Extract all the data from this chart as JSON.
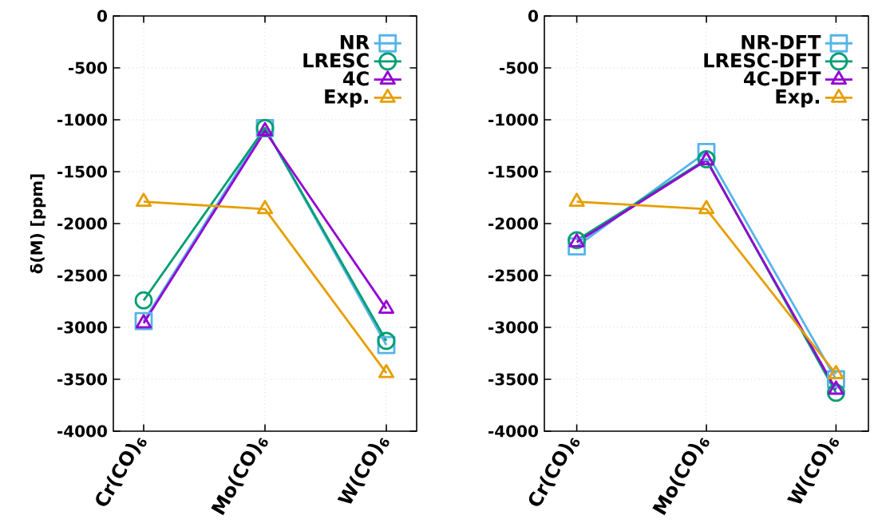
{
  "chart_data": [
    {
      "type": "line",
      "ylabel": "δ(M) [ppm]",
      "categories": [
        "Cr(CO)$_{6}$",
        "Mo(CO)$_{6}$",
        "W(CO)$_{6}$"
      ],
      "ylim": [
        -4000,
        0
      ],
      "yticks": [
        -4000,
        -3500,
        -3000,
        -2500,
        -2000,
        -1500,
        -1000,
        -500,
        0
      ],
      "grid": true,
      "legend": "top right",
      "series": [
        {
          "name": "NR",
          "color": "#56b4e9",
          "marker": "square",
          "values": [
            -2940,
            -1080,
            -3170
          ]
        },
        {
          "name": "LRESC",
          "color": "#009e73",
          "marker": "circle",
          "values": [
            -2740,
            -1080,
            -3130
          ]
        },
        {
          "name": "4C",
          "color": "#9400d3",
          "marker": "triangle",
          "values": [
            -2960,
            -1110,
            -2820
          ]
        },
        {
          "name": "Exp.",
          "color": "#e69f00",
          "marker": "triangle",
          "values": [
            -1790,
            -1860,
            -3440
          ]
        }
      ]
    },
    {
      "type": "line",
      "categories": [
        "Cr(CO)$_{6}$",
        "Mo(CO)$_{6}$",
        "W(CO)$_{6}$"
      ],
      "ylim": [
        -4000,
        0
      ],
      "yticks": [
        -4000,
        -3500,
        -3000,
        -2500,
        -2000,
        -1500,
        -1000,
        -500,
        0
      ],
      "grid": true,
      "legend": "top right",
      "series": [
        {
          "name": "NR-DFT",
          "color": "#56b4e9",
          "marker": "square",
          "values": [
            -2220,
            -1310,
            -3500
          ]
        },
        {
          "name": "LRESC-DFT",
          "color": "#009e73",
          "marker": "circle",
          "values": [
            -2160,
            -1380,
            -3630
          ]
        },
        {
          "name": "4C-DFT",
          "color": "#9400d3",
          "marker": "triangle",
          "values": [
            -2180,
            -1390,
            -3600
          ]
        },
        {
          "name": "Exp.",
          "color": "#e69f00",
          "marker": "triangle",
          "values": [
            -1790,
            -1860,
            -3450
          ]
        }
      ]
    }
  ]
}
